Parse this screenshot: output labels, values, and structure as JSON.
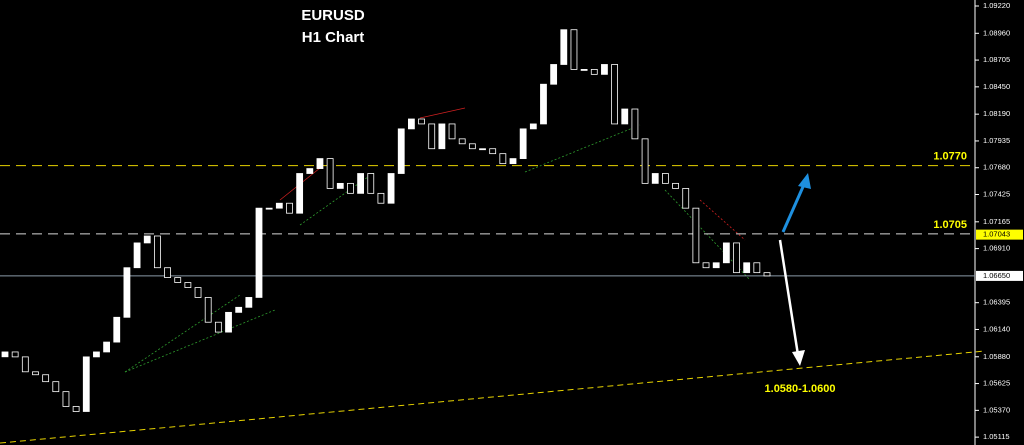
{
  "chart_data": {
    "type": "candlestick",
    "title": "EURUSD",
    "subtitle": "H1 Chart",
    "up_color": "#ffffff",
    "down_color": "#000000",
    "wick_color": "#ffffff",
    "open": [
      1.0588,
      1.05926,
      1.05879,
      1.05737,
      1.05709,
      1.05643,
      1.05548,
      1.05407,
      1.05359,
      1.05879,
      1.05926,
      1.0602,
      1.06256,
      1.06728,
      1.06964,
      1.0703,
      1.06728,
      1.06634,
      1.06587,
      1.06539,
      1.06445,
      1.06209,
      1.06115,
      1.06303,
      1.06351,
      1.06445,
      1.07295,
      1.07295,
      1.07342,
      1.07247,
      1.07625,
      1.07672,
      1.07767,
      1.07483,
      1.07531,
      1.07436,
      1.07625,
      1.07436,
      1.07342,
      1.07625,
      1.0805,
      1.08144,
      1.08097,
      1.07861,
      1.08097,
      1.07955,
      1.07908,
      1.07861,
      1.07861,
      1.07814,
      1.07719,
      1.07767,
      1.0805,
      1.08097,
      1.08475,
      1.08663,
      1.08994,
      1.08616,
      1.08616,
      1.08569,
      1.08663,
      1.08097,
      1.08239,
      1.07955,
      1.07531,
      1.07625,
      1.07531,
      1.07483,
      1.07295,
      1.06775,
      1.06728,
      1.06775,
      1.06964,
      1.06681,
      1.06775,
      1.06681
    ],
    "close": [
      1.05926,
      1.05879,
      1.05737,
      1.05709,
      1.05643,
      1.05548,
      1.05407,
      1.05359,
      1.05879,
      1.05926,
      1.0602,
      1.06256,
      1.06728,
      1.06964,
      1.0703,
      1.06728,
      1.06634,
      1.06587,
      1.06539,
      1.06445,
      1.06209,
      1.06115,
      1.06303,
      1.06351,
      1.06445,
      1.07295,
      1.07295,
      1.07342,
      1.07247,
      1.07625,
      1.07672,
      1.07767,
      1.07483,
      1.07531,
      1.07436,
      1.07625,
      1.07436,
      1.07342,
      1.07625,
      1.0805,
      1.08144,
      1.08097,
      1.07861,
      1.08097,
      1.07955,
      1.07908,
      1.07861,
      1.07861,
      1.07814,
      1.07719,
      1.07767,
      1.0805,
      1.08097,
      1.08475,
      1.08663,
      1.08994,
      1.08616,
      1.08616,
      1.08569,
      1.08663,
      1.08097,
      1.08239,
      1.07955,
      1.07531,
      1.07625,
      1.07531,
      1.07483,
      1.07295,
      1.06775,
      1.06728,
      1.06775,
      1.06964,
      1.06681,
      1.06775,
      1.06681,
      1.0665
    ],
    "ylim": [
      1.0504,
      1.09277
    ],
    "yticks": [
      {
        "value": 1.0922,
        "label": "1.09220"
      },
      {
        "value": 1.0896,
        "label": "1.08960"
      },
      {
        "value": 1.08705,
        "label": "1.08705"
      },
      {
        "value": 1.0845,
        "label": "1.08450"
      },
      {
        "value": 1.0819,
        "label": "1.08190"
      },
      {
        "value": 1.07935,
        "label": "1.07935"
      },
      {
        "value": 1.0768,
        "label": "1.07680"
      },
      {
        "value": 1.07425,
        "label": "1.07425"
      },
      {
        "value": 1.07165,
        "label": "1.07165"
      },
      {
        "value": 1.0691,
        "label": "1.06910"
      },
      {
        "value": 1.06395,
        "label": "1.06395"
      },
      {
        "value": 1.0614,
        "label": "1.06140"
      },
      {
        "value": 1.0588,
        "label": "1.05880"
      },
      {
        "value": 1.05625,
        "label": "1.05625"
      },
      {
        "value": 1.0537,
        "label": "1.05370"
      },
      {
        "value": 1.05115,
        "label": "1.05115"
      }
    ],
    "levels": [
      {
        "value": 1.077,
        "label": "1.0770"
      },
      {
        "value": 1.0705,
        "label": "1.0705"
      }
    ],
    "price_tags": [
      {
        "value": 1.07043,
        "label": "1.07043",
        "color": "#ffff00"
      },
      {
        "value": 1.0665,
        "label": "1.06650",
        "color": "#ffffff"
      }
    ],
    "annotation": "1.0580-1.0600"
  }
}
